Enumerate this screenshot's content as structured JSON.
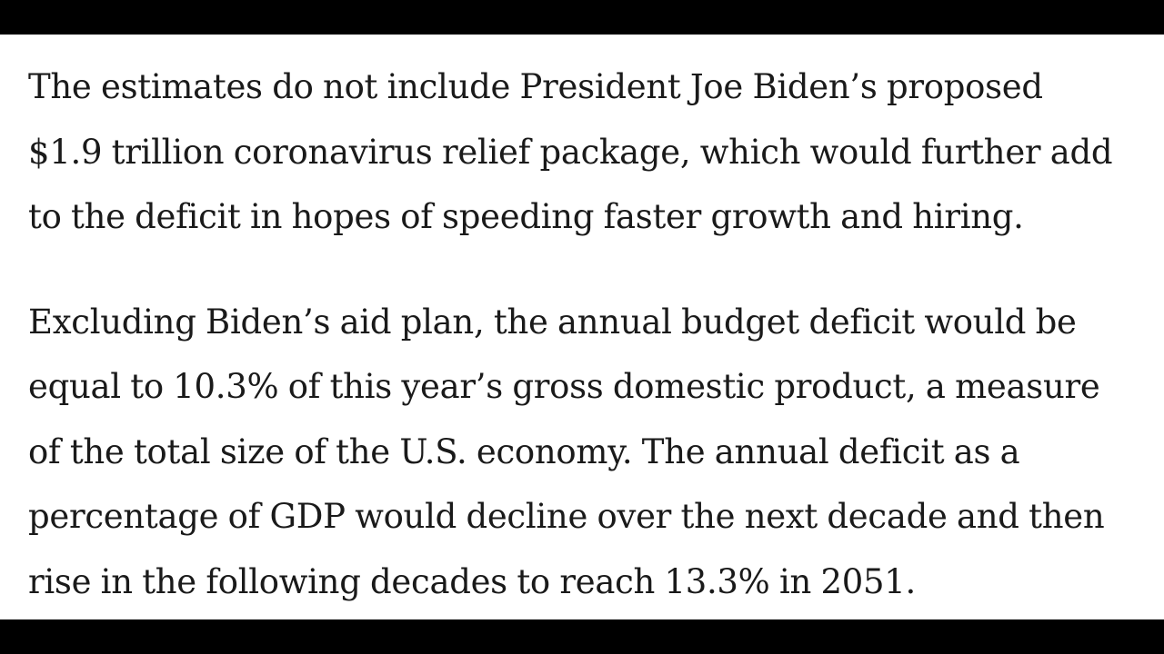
{
  "article": {
    "paragraphs": [
      {
        "lines": [
          "The estimates do not include President Joe Biden’s proposed",
          "$1.9 trillion coronavirus relief package, which would further add",
          "to the deficit in hopes of speeding faster growth and hiring."
        ]
      },
      {
        "lines": [
          "Excluding Biden’s aid plan, the annual budget deficit would be",
          "equal to 10.3% of this year’s gross domestic product, a measure",
          "of the total size of the U.S. economy. The annual deficit as a",
          "percentage of GDP would decline over the next decade and then",
          "rise in the following decades to reach 13.3% in 2051."
        ]
      }
    ]
  },
  "colors": {
    "background": "#ffffff",
    "text": "#1a1a1a",
    "letterbox": "#000000"
  }
}
